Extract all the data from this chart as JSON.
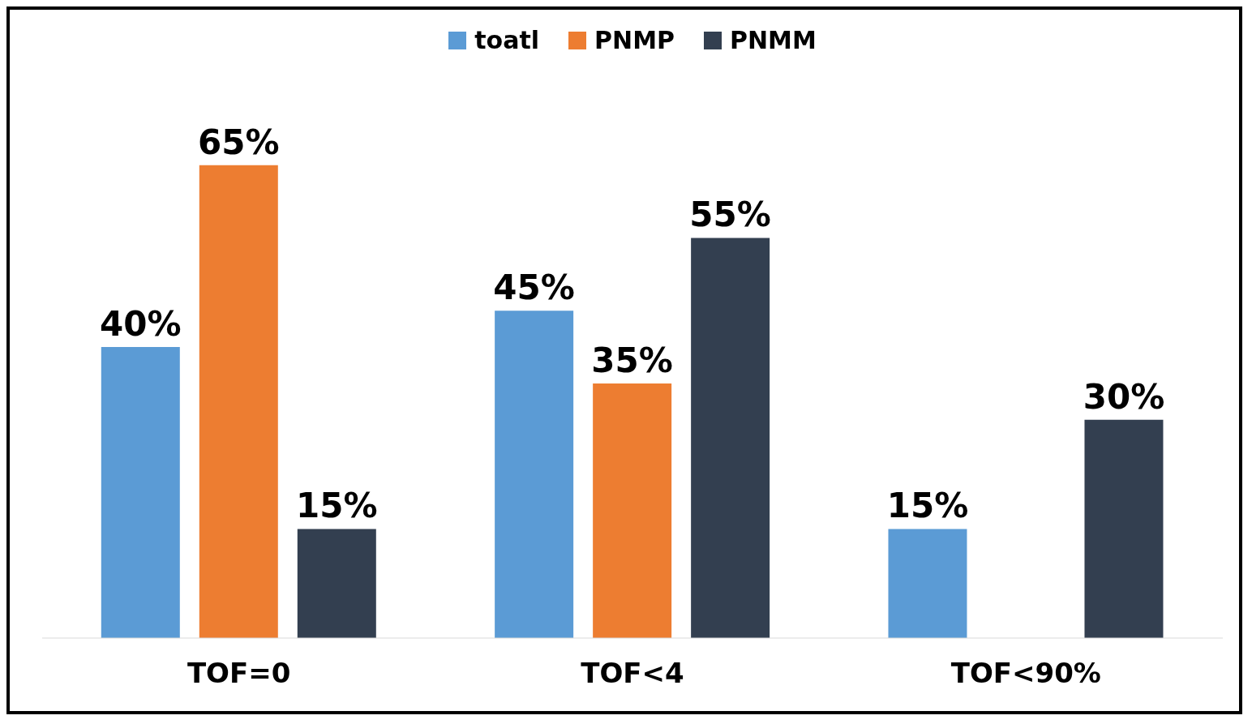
{
  "chart_data": {
    "type": "bar",
    "categories": [
      "TOF=0",
      "TOF<4",
      "TOF<90%"
    ],
    "series": [
      {
        "name": "toatl",
        "color": "#5b9bd5",
        "values": [
          40,
          45,
          15
        ],
        "value_labels": [
          "40%",
          "45%",
          "15%"
        ]
      },
      {
        "name": "PNMP",
        "color": "#ed7d31",
        "values": [
          65,
          35,
          null
        ],
        "value_labels": [
          "65%",
          "35%",
          null
        ]
      },
      {
        "name": "PNMM",
        "color": "#333f50",
        "values": [
          15,
          55,
          30
        ],
        "value_labels": [
          "15%",
          "55%",
          "30%"
        ]
      }
    ],
    "grid": false,
    "legend": "top",
    "tick_labels": "x"
  }
}
